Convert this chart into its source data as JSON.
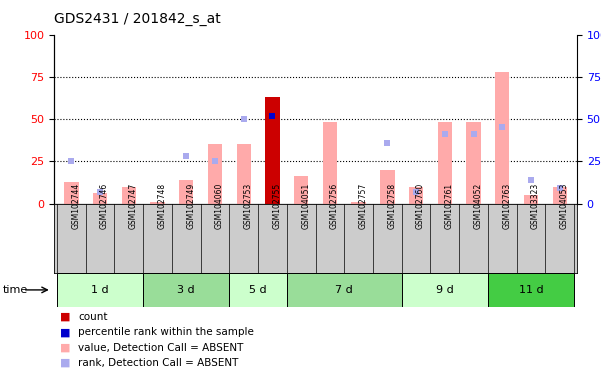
{
  "title": "GDS2431 / 201842_s_at",
  "samples": [
    "GSM102744",
    "GSM102746",
    "GSM102747",
    "GSM102748",
    "GSM102749",
    "GSM104060",
    "GSM102753",
    "GSM102755",
    "GSM104051",
    "GSM102756",
    "GSM102757",
    "GSM102758",
    "GSM102760",
    "GSM102761",
    "GSM104052",
    "GSM102763",
    "GSM103323",
    "GSM104053"
  ],
  "time_groups": [
    {
      "label": "1 d",
      "start": 0,
      "end": 3
    },
    {
      "label": "3 d",
      "start": 3,
      "end": 6
    },
    {
      "label": "5 d",
      "start": 6,
      "end": 8
    },
    {
      "label": "7 d",
      "start": 8,
      "end": 12
    },
    {
      "label": "9 d",
      "start": 12,
      "end": 15
    },
    {
      "label": "11 d",
      "start": 15,
      "end": 18
    }
  ],
  "group_colors": [
    "#ccffcc",
    "#99dd99",
    "#ccffcc",
    "#99dd99",
    "#ccffcc",
    "#44cc44"
  ],
  "pink_bars": [
    13,
    6,
    10,
    1,
    14,
    35,
    35,
    63,
    16,
    48,
    1,
    20,
    10,
    48,
    48,
    78,
    5,
    10
  ],
  "blue_squares": [
    25,
    7,
    null,
    null,
    28,
    25,
    50,
    52,
    null,
    null,
    null,
    36,
    7,
    41,
    41,
    45,
    14,
    9
  ],
  "red_bar_index": 7,
  "blue_dot_index": 7,
  "ylim": [
    0,
    100
  ],
  "yticks": [
    0,
    25,
    50,
    75,
    100
  ],
  "pink_color": "#ffaaaa",
  "red_color": "#cc0000",
  "blue_sq_color": "#aaaaee",
  "blue_dot_color": "#0000cc",
  "gray_bg": "#cccccc",
  "legend_labels": [
    "count",
    "percentile rank within the sample",
    "value, Detection Call = ABSENT",
    "rank, Detection Call = ABSENT"
  ]
}
